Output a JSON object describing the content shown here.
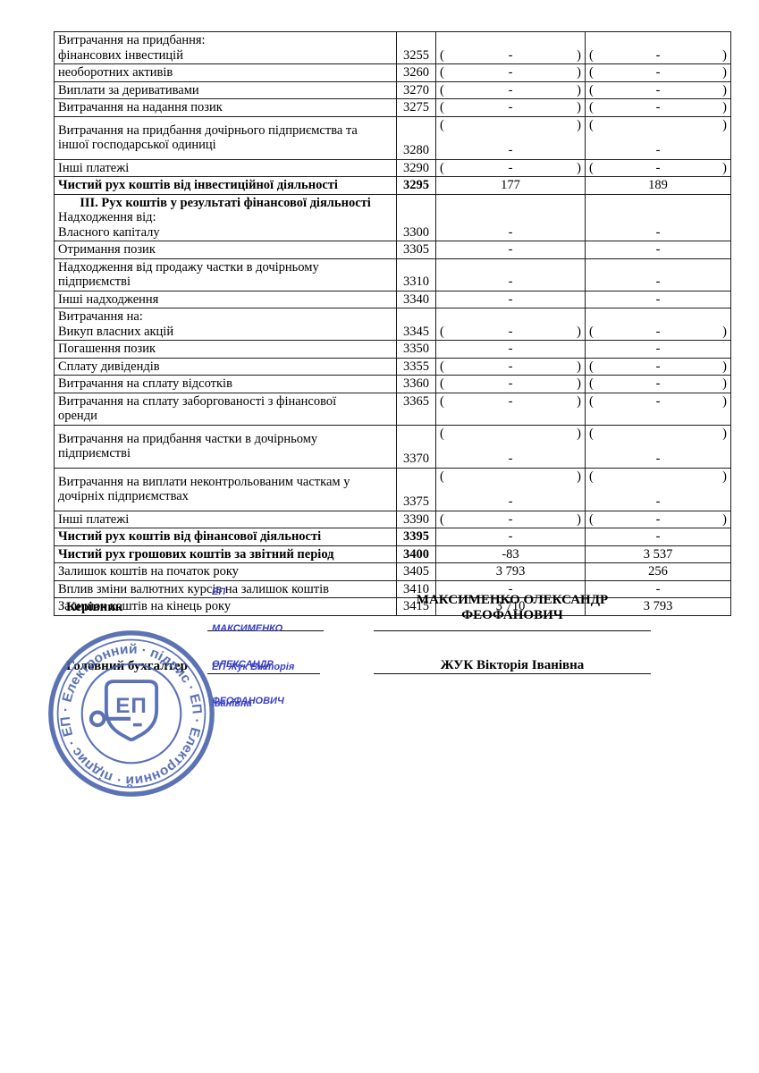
{
  "document": {
    "type": "cash-flow-statement-continuation",
    "language": "uk"
  },
  "table": {
    "rows": [
      {
        "lines": [
          "Витрачання на придбання:",
          "фінансових інвестицій"
        ],
        "code": "3255",
        "v1": "-",
        "v2": "-",
        "paren": "inline",
        "valign": "bottom",
        "bold": false
      },
      {
        "lines": [
          "необоротних активів"
        ],
        "code": "3260",
        "v1": "-",
        "v2": "-",
        "paren": "inline",
        "valign": "middle",
        "bold": false
      },
      {
        "lines": [
          "Виплати за деривативами"
        ],
        "code": "3270",
        "v1": "-",
        "v2": "-",
        "paren": "inline",
        "valign": "middle",
        "bold": false
      },
      {
        "lines": [
          "Витрачання на надання позик"
        ],
        "code": "3275",
        "v1": "-",
        "v2": "-",
        "paren": "inline",
        "valign": "middle",
        "bold": false
      },
      {
        "lines": [
          "Витрачання на придбання дочірнього підприємства та",
          "іншої господарської одиниці"
        ],
        "code": "3280",
        "v1": "-",
        "v2": "-",
        "paren": "split",
        "valign": "bottom",
        "bold": false
      },
      {
        "lines": [
          "Інші платежі"
        ],
        "code": "3290",
        "v1": "-",
        "v2": "-",
        "paren": "inline",
        "valign": "middle",
        "bold": false
      },
      {
        "lines": [
          "Чистий рух коштів від інвестиційної діяльності"
        ],
        "code": "3295",
        "v1": "177",
        "v2": "189",
        "paren": "none",
        "valign": "middle",
        "bold": true
      },
      {
        "section": "III. Рух коштів у результаті фінансової діяльності",
        "lines": [
          "Надходження від:",
          "Власного капіталу"
        ],
        "code": "3300",
        "v1": "-",
        "v2": "-",
        "paren": "none",
        "valign": "bottom",
        "bold": false
      },
      {
        "lines": [
          "Отримання позик"
        ],
        "code": "3305",
        "v1": "-",
        "v2": "-",
        "paren": "none",
        "valign": "middle",
        "bold": false
      },
      {
        "lines": [
          "Надходження від продажу частки в дочірньому",
          "підприємстві"
        ],
        "code": "3310",
        "v1": "-",
        "v2": "-",
        "paren": "none",
        "valign": "bottom",
        "bold": false
      },
      {
        "lines": [
          "Інші надходження"
        ],
        "code": "3340",
        "v1": "-",
        "v2": "-",
        "paren": "none",
        "valign": "middle",
        "bold": false
      },
      {
        "lines": [
          "Витрачання на:",
          "Викуп власних акцій"
        ],
        "code": "3345",
        "v1": "-",
        "v2": "-",
        "paren": "inline",
        "valign": "bottom",
        "bold": false
      },
      {
        "lines": [
          "Погашення позик"
        ],
        "code": "3350",
        "v1": "-",
        "v2": "-",
        "paren": "none",
        "valign": "middle",
        "bold": false
      },
      {
        "lines": [
          "Сплату дивідендів"
        ],
        "code": "3355",
        "v1": "-",
        "v2": "-",
        "paren": "inline",
        "valign": "middle",
        "bold": false
      },
      {
        "lines": [
          "Витрачання на сплату відсотків"
        ],
        "code": "3360",
        "v1": "-",
        "v2": "-",
        "paren": "inline",
        "valign": "middle",
        "bold": false
      },
      {
        "lines": [
          "Витрачання на сплату заборгованості з фінансової",
          "оренди"
        ],
        "code": "3365",
        "v1": "-",
        "v2": "-",
        "paren": "inline",
        "valign": "top",
        "bold": false
      },
      {
        "lines": [
          "Витрачання на придбання частки в дочірньому",
          "підприємстві"
        ],
        "code": "3370",
        "v1": "-",
        "v2": "-",
        "paren": "split",
        "valign": "bottom",
        "bold": false
      },
      {
        "lines": [
          "Витрачання на виплати неконтрольованим часткам у",
          "дочірніх підприємствах"
        ],
        "code": "3375",
        "v1": "-",
        "v2": "-",
        "paren": "split",
        "valign": "bottom",
        "bold": false
      },
      {
        "lines": [
          "Інші платежі"
        ],
        "code": "3390",
        "v1": "-",
        "v2": "-",
        "paren": "inline",
        "valign": "middle",
        "bold": false
      },
      {
        "lines": [
          "Чистий рух коштів від фінансової діяльності"
        ],
        "code": "3395",
        "v1": "-",
        "v2": "-",
        "paren": "none",
        "valign": "middle",
        "bold": true
      },
      {
        "lines": [
          "Чистий рух грошових коштів за звітний період"
        ],
        "code": "3400",
        "v1": "-83",
        "v2": "3 537",
        "paren": "none",
        "valign": "middle",
        "bold": true
      },
      {
        "lines": [
          "Залишок коштів на початок року"
        ],
        "code": "3405",
        "v1": "3 793",
        "v2": "256",
        "paren": "none",
        "valign": "middle",
        "bold": false
      },
      {
        "lines": [
          "Вплив зміни валютних курсів на залишок коштів"
        ],
        "code": "3410",
        "v1": "-",
        "v2": "-",
        "paren": "none",
        "valign": "middle",
        "bold": false
      },
      {
        "lines": [
          "Залишок коштів на кінець року"
        ],
        "code": "3415",
        "v1": "3 710",
        "v2": "3 793",
        "paren": "none",
        "valign": "middle",
        "bold": false
      }
    ]
  },
  "signatures": {
    "kerivnyk_label": "Керівник",
    "kerivnyk_name": "МАКСИМЕНКО ОЛЕКСАНДР ФЕОФАНОВИЧ",
    "buhgalter_label": "Головний бухгалтер",
    "buhgalter_name": "ЖУК Вікторія Іванівна",
    "ep1_lines": [
      "ЕП",
      "МАКСИМЕНКО",
      "ОЛЕКСАНДР",
      "ФЕОФАНОВИЧ"
    ],
    "ep2_lines": [
      "ЕП Жук Вікторія",
      "Іванівна"
    ]
  },
  "stamp": {
    "ring_text": "Електронний · підпис · ЕП · Електронний · підпис · ЕП · ",
    "center_text": "ЕП",
    "color": "#4a63ad"
  },
  "colors": {
    "ep_text": "#3a40c4",
    "stamp": "#4a63ad",
    "table_border": "#1d1d1d"
  }
}
